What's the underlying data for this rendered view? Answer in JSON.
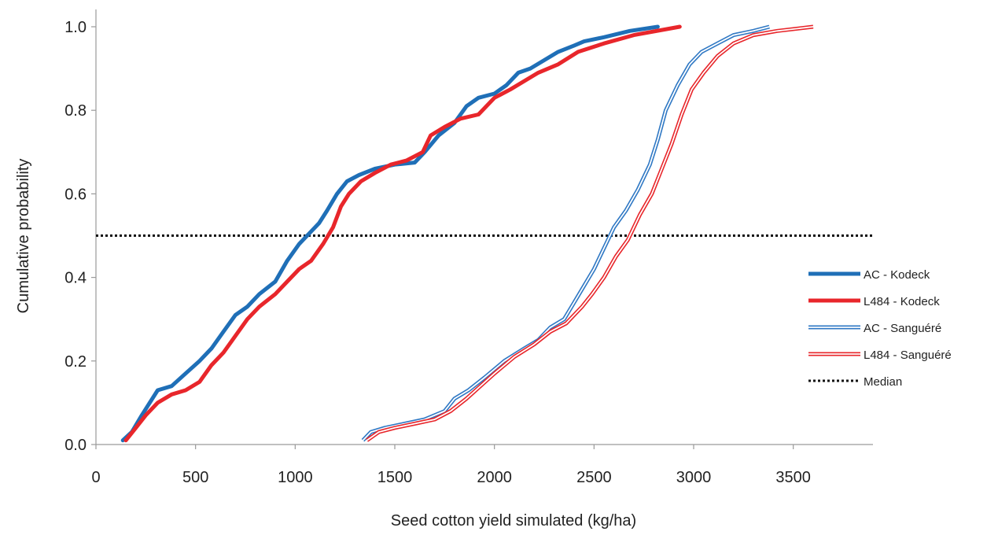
{
  "chart_data": {
    "type": "line",
    "xlabel": "Seed cotton yield simulated (kg/ha)",
    "ylabel": "Cumulative probability",
    "xlim": [
      0,
      3900
    ],
    "ylim": [
      0,
      1.0
    ],
    "x_ticks": [
      "0",
      "500",
      "1000",
      "1500",
      "2000",
      "2500",
      "3000",
      "3500"
    ],
    "y_ticks": [
      "0.0",
      "0.2",
      "0.4",
      "0.6",
      "0.8",
      "1.0"
    ],
    "grid": false,
    "legend_position": "right",
    "series": [
      {
        "name": "AC - Kodeck",
        "style": "thick",
        "color": "#1f6fb7",
        "points": [
          [
            135,
            0.01
          ],
          [
            180,
            0.03
          ],
          [
            230,
            0.07
          ],
          [
            270,
            0.1
          ],
          [
            310,
            0.13
          ],
          [
            380,
            0.14
          ],
          [
            450,
            0.17
          ],
          [
            520,
            0.2
          ],
          [
            580,
            0.23
          ],
          [
            640,
            0.27
          ],
          [
            700,
            0.31
          ],
          [
            760,
            0.33
          ],
          [
            820,
            0.36
          ],
          [
            900,
            0.39
          ],
          [
            960,
            0.44
          ],
          [
            1020,
            0.48
          ],
          [
            1080,
            0.51
          ],
          [
            1120,
            0.53
          ],
          [
            1160,
            0.56
          ],
          [
            1210,
            0.6
          ],
          [
            1260,
            0.63
          ],
          [
            1320,
            0.645
          ],
          [
            1400,
            0.66
          ],
          [
            1500,
            0.67
          ],
          [
            1600,
            0.675
          ],
          [
            1650,
            0.7
          ],
          [
            1720,
            0.74
          ],
          [
            1800,
            0.77
          ],
          [
            1860,
            0.81
          ],
          [
            1920,
            0.83
          ],
          [
            2000,
            0.84
          ],
          [
            2060,
            0.86
          ],
          [
            2120,
            0.89
          ],
          [
            2180,
            0.9
          ],
          [
            2250,
            0.92
          ],
          [
            2320,
            0.94
          ],
          [
            2400,
            0.955
          ],
          [
            2450,
            0.965
          ],
          [
            2550,
            0.975
          ],
          [
            2680,
            0.99
          ],
          [
            2820,
            1.0
          ]
        ]
      },
      {
        "name": "L484 - Kodeck",
        "style": "thick",
        "color": "#e8262b",
        "points": [
          [
            150,
            0.01
          ],
          [
            200,
            0.04
          ],
          [
            250,
            0.07
          ],
          [
            310,
            0.1
          ],
          [
            380,
            0.12
          ],
          [
            450,
            0.13
          ],
          [
            520,
            0.15
          ],
          [
            580,
            0.19
          ],
          [
            640,
            0.22
          ],
          [
            700,
            0.26
          ],
          [
            760,
            0.3
          ],
          [
            820,
            0.33
          ],
          [
            900,
            0.36
          ],
          [
            960,
            0.39
          ],
          [
            1020,
            0.42
          ],
          [
            1080,
            0.44
          ],
          [
            1140,
            0.48
          ],
          [
            1190,
            0.52
          ],
          [
            1230,
            0.57
          ],
          [
            1270,
            0.6
          ],
          [
            1330,
            0.63
          ],
          [
            1400,
            0.65
          ],
          [
            1480,
            0.67
          ],
          [
            1560,
            0.68
          ],
          [
            1640,
            0.7
          ],
          [
            1680,
            0.74
          ],
          [
            1750,
            0.76
          ],
          [
            1830,
            0.78
          ],
          [
            1920,
            0.79
          ],
          [
            2000,
            0.83
          ],
          [
            2080,
            0.85
          ],
          [
            2150,
            0.87
          ],
          [
            2220,
            0.89
          ],
          [
            2320,
            0.91
          ],
          [
            2420,
            0.94
          ],
          [
            2550,
            0.96
          ],
          [
            2700,
            0.98
          ],
          [
            2930,
            1.0
          ]
        ]
      },
      {
        "name": "AC - Sanguéré",
        "style": "double",
        "color": "#2f78c4",
        "points": [
          [
            1340,
            0.01
          ],
          [
            1380,
            0.03
          ],
          [
            1450,
            0.04
          ],
          [
            1550,
            0.05
          ],
          [
            1650,
            0.06
          ],
          [
            1750,
            0.08
          ],
          [
            1800,
            0.11
          ],
          [
            1870,
            0.13
          ],
          [
            1950,
            0.16
          ],
          [
            2050,
            0.2
          ],
          [
            2150,
            0.23
          ],
          [
            2220,
            0.25
          ],
          [
            2280,
            0.28
          ],
          [
            2350,
            0.3
          ],
          [
            2400,
            0.34
          ],
          [
            2450,
            0.38
          ],
          [
            2500,
            0.42
          ],
          [
            2550,
            0.47
          ],
          [
            2600,
            0.52
          ],
          [
            2660,
            0.56
          ],
          [
            2720,
            0.61
          ],
          [
            2780,
            0.67
          ],
          [
            2820,
            0.73
          ],
          [
            2860,
            0.8
          ],
          [
            2920,
            0.86
          ],
          [
            2980,
            0.91
          ],
          [
            3040,
            0.94
          ],
          [
            3120,
            0.96
          ],
          [
            3200,
            0.98
          ],
          [
            3300,
            0.99
          ],
          [
            3380,
            1.0
          ]
        ]
      },
      {
        "name": "L484 - Sanguéré",
        "style": "double",
        "color": "#e8262b",
        "points": [
          [
            1360,
            0.01
          ],
          [
            1420,
            0.03
          ],
          [
            1500,
            0.04
          ],
          [
            1600,
            0.05
          ],
          [
            1700,
            0.06
          ],
          [
            1780,
            0.08
          ],
          [
            1860,
            0.11
          ],
          [
            1930,
            0.14
          ],
          [
            2000,
            0.17
          ],
          [
            2100,
            0.21
          ],
          [
            2200,
            0.24
          ],
          [
            2280,
            0.27
          ],
          [
            2360,
            0.29
          ],
          [
            2440,
            0.33
          ],
          [
            2490,
            0.36
          ],
          [
            2550,
            0.4
          ],
          [
            2610,
            0.45
          ],
          [
            2670,
            0.49
          ],
          [
            2730,
            0.55
          ],
          [
            2790,
            0.6
          ],
          [
            2840,
            0.66
          ],
          [
            2890,
            0.72
          ],
          [
            2940,
            0.79
          ],
          [
            2990,
            0.85
          ],
          [
            3050,
            0.89
          ],
          [
            3120,
            0.93
          ],
          [
            3200,
            0.96
          ],
          [
            3300,
            0.98
          ],
          [
            3420,
            0.99
          ],
          [
            3600,
            1.0
          ]
        ]
      }
    ],
    "reference_lines": [
      {
        "name": "Median",
        "y": 0.5,
        "x_range": [
          0,
          3900
        ],
        "style": "dotted",
        "color": "#111111"
      }
    ]
  }
}
